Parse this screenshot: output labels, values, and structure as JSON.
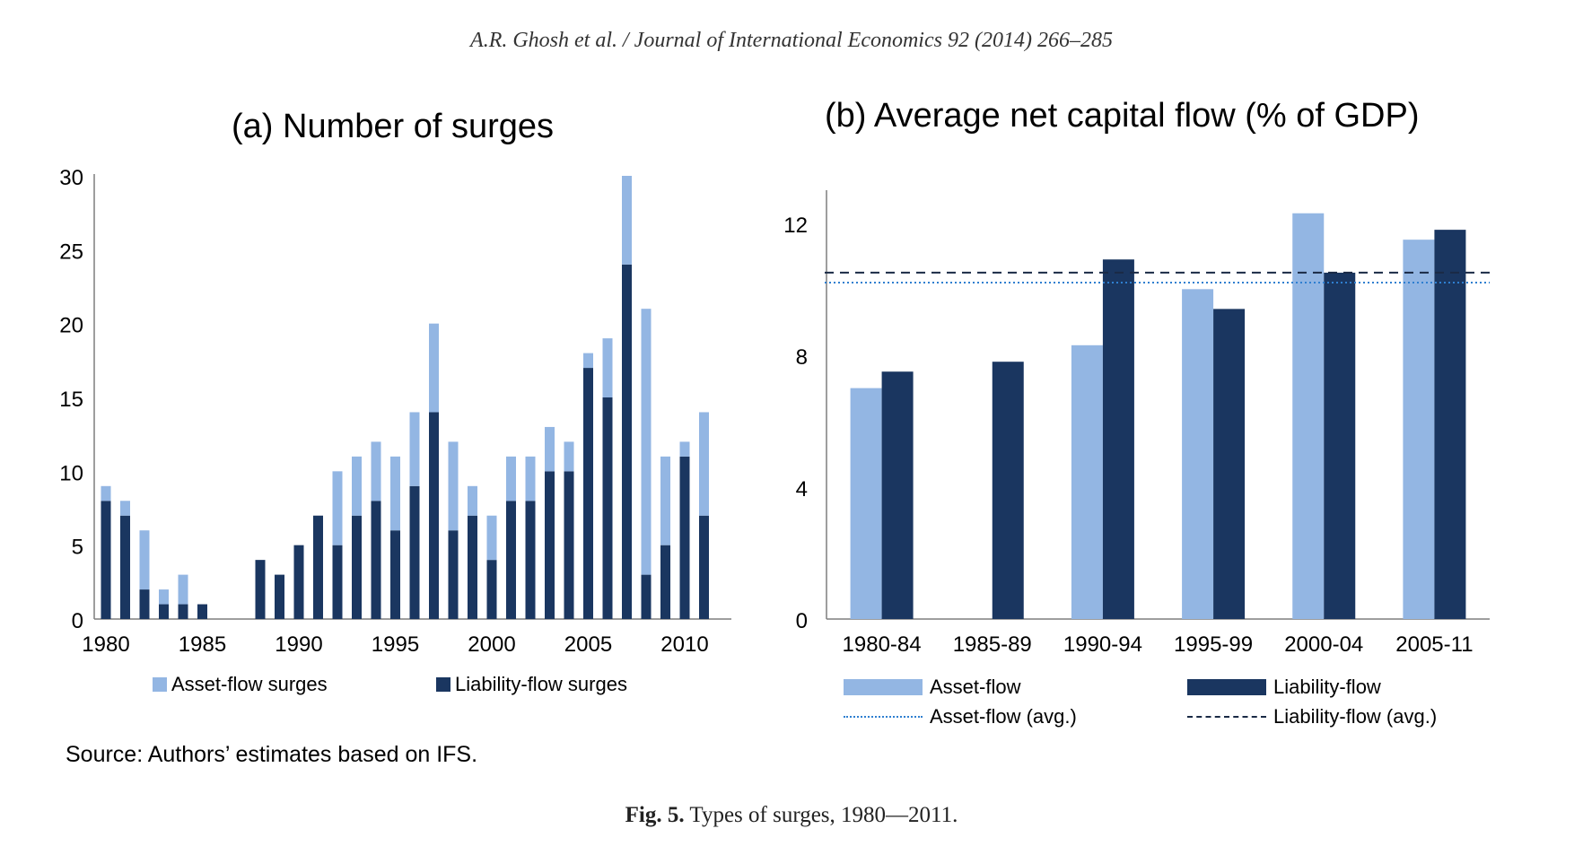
{
  "header": {
    "text": "A.R. Ghosh et al. / Journal of International Economics 92 (2014) 266–285"
  },
  "colors": {
    "asset": "#93b6e3",
    "liability": "#1a3660",
    "asset_avg_line": "#2f7fd0",
    "liability_avg_line": "#1a2a45",
    "axis": "#7f7f7f"
  },
  "source": "Source: Authors’ estimates based on IFS.",
  "caption": {
    "label": "Fig. 5.",
    "text": "Types of surges, 1980—2011."
  },
  "chart_data": [
    {
      "type": "bar",
      "stacked": true,
      "title": "(a) Number of surges",
      "x": [
        1980,
        1981,
        1982,
        1983,
        1984,
        1985,
        1986,
        1987,
        1988,
        1989,
        1990,
        1991,
        1992,
        1993,
        1994,
        1995,
        1996,
        1997,
        1998,
        1999,
        2000,
        2001,
        2002,
        2003,
        2004,
        2005,
        2006,
        2007,
        2008,
        2009,
        2010,
        2011
      ],
      "x_tick_labels": [
        "1980",
        "1985",
        "1990",
        "1995",
        "2000",
        "2005",
        "2010"
      ],
      "y_ticks": [
        "0",
        "5",
        "10",
        "15",
        "20",
        "25",
        "30"
      ],
      "ylim": [
        0,
        30
      ],
      "series": [
        {
          "name": "Liability-flow surges",
          "values": [
            8,
            7,
            2,
            1,
            1,
            1,
            0,
            0,
            4,
            3,
            5,
            7,
            5,
            7,
            8,
            6,
            9,
            14,
            6,
            7,
            4,
            8,
            8,
            10,
            10,
            17,
            15,
            24,
            3,
            5,
            11,
            7
          ]
        },
        {
          "name": "Asset-flow surges",
          "values": [
            1,
            1,
            4,
            1,
            2,
            0,
            0,
            0,
            0,
            0,
            0,
            0,
            5,
            4,
            4,
            5,
            5,
            6,
            6,
            2,
            3,
            3,
            3,
            3,
            2,
            1,
            4,
            6,
            18,
            6,
            1,
            7
          ]
        }
      ],
      "legend": [
        "Asset-flow surges",
        "Liability-flow surges"
      ]
    },
    {
      "type": "bar",
      "title": "(b) Average net capital flow (% of GDP)",
      "categories": [
        "1980-84",
        "1985-89",
        "1990-94",
        "1995-99",
        "2000-04",
        "2005-11"
      ],
      "y_ticks": [
        "0",
        "4",
        "8",
        "12"
      ],
      "ylim": [
        0,
        13
      ],
      "series": [
        {
          "name": "Asset-flow",
          "values": [
            7.0,
            0,
            8.3,
            10.0,
            12.3,
            11.5
          ]
        },
        {
          "name": "Liability-flow",
          "values": [
            7.5,
            7.8,
            10.9,
            9.4,
            10.5,
            11.8
          ]
        }
      ],
      "reference_lines": [
        {
          "name": "Asset-flow (avg.)",
          "value": 10.2,
          "style": "dotted"
        },
        {
          "name": "Liability-flow (avg.)",
          "value": 10.5,
          "style": "dashed"
        }
      ],
      "legend": [
        "Asset-flow",
        "Liability-flow",
        "Asset-flow (avg.)",
        "Liability-flow (avg.)"
      ]
    }
  ]
}
